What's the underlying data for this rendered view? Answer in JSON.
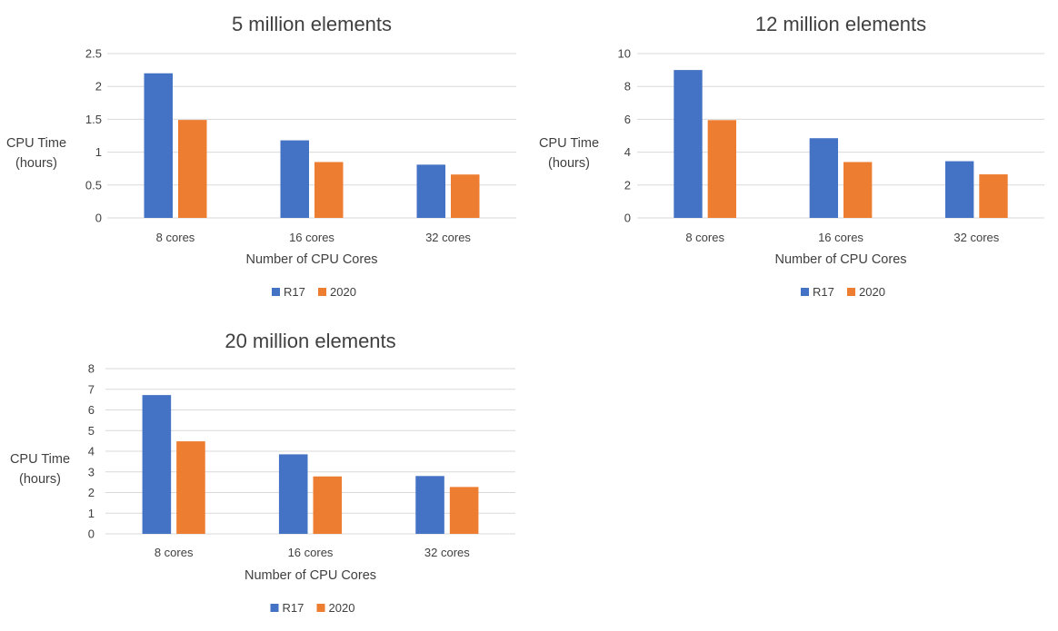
{
  "colors": {
    "R17": "#4472c4",
    "2020": "#ed7d31"
  },
  "chart_data": [
    {
      "type": "bar",
      "title": "5 million elements",
      "xlabel": "Number of CPU Cores",
      "ylabel": [
        "CPU Time",
        "(hours)"
      ],
      "categories": [
        "8 cores",
        "16 cores",
        "32 cores"
      ],
      "series": [
        {
          "name": "R17",
          "values": [
            2.2,
            1.18,
            0.81
          ]
        },
        {
          "name": "2020",
          "values": [
            1.49,
            0.85,
            0.66
          ]
        }
      ],
      "ylim": [
        0,
        2.5
      ],
      "yticks": [
        "0",
        "0.5",
        "1",
        "1.5",
        "2",
        "2.5"
      ],
      "ytick_values": [
        0,
        0.5,
        1,
        1.5,
        2,
        2.5
      ],
      "grid": true,
      "legend": "bottom"
    },
    {
      "type": "bar",
      "title": "12 million elements",
      "xlabel": "Number of CPU Cores",
      "ylabel": [
        "CPU Time",
        "(hours)"
      ],
      "categories": [
        "8 cores",
        "16 cores",
        "32 cores"
      ],
      "series": [
        {
          "name": "R17",
          "values": [
            9.0,
            4.85,
            3.45
          ]
        },
        {
          "name": "2020",
          "values": [
            5.95,
            3.4,
            2.65
          ]
        }
      ],
      "ylim": [
        0,
        10
      ],
      "yticks": [
        "0",
        "2",
        "4",
        "6",
        "8",
        "10"
      ],
      "ytick_values": [
        0,
        2,
        4,
        6,
        8,
        10
      ],
      "grid": true,
      "legend": "bottom"
    },
    {
      "type": "bar",
      "title": "20 million elements",
      "xlabel": "Number of CPU Cores",
      "ylabel": [
        "CPU Time",
        "(hours)"
      ],
      "categories": [
        "8 cores",
        "16 cores",
        "32 cores"
      ],
      "series": [
        {
          "name": "R17",
          "values": [
            6.72,
            3.85,
            2.8
          ]
        },
        {
          "name": "2020",
          "values": [
            4.48,
            2.78,
            2.27
          ]
        }
      ],
      "ylim": [
        0,
        8
      ],
      "yticks": [
        "0",
        "1",
        "2",
        "3",
        "4",
        "5",
        "6",
        "7",
        "8"
      ],
      "ytick_values": [
        0,
        1,
        2,
        3,
        4,
        5,
        6,
        7,
        8
      ],
      "grid": true,
      "legend": "bottom"
    }
  ]
}
